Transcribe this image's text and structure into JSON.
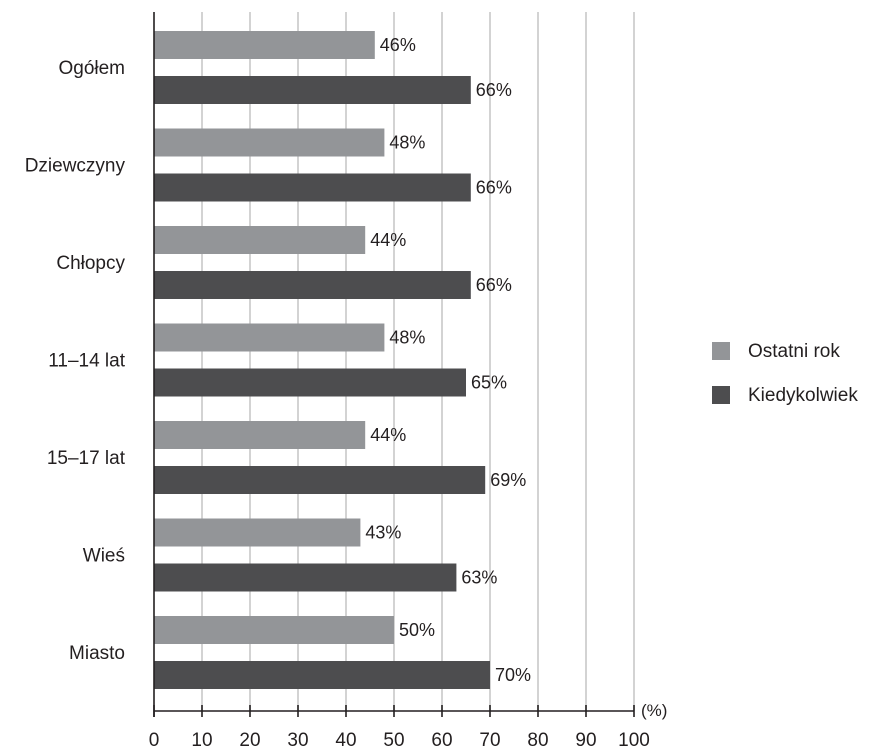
{
  "chart_data": {
    "type": "bar",
    "orientation": "horizontal",
    "categories": [
      "Ogółem",
      "Dziewczyny",
      "Chłopcy",
      "11–14 lat",
      "15–17 lat",
      "Wieś",
      "Miasto"
    ],
    "series": [
      {
        "name": "Ostatni rok",
        "color": "#939598",
        "values": [
          46,
          48,
          44,
          48,
          44,
          43,
          50
        ]
      },
      {
        "name": "Kiedykolwiek",
        "color": "#4d4d4f",
        "values": [
          66,
          66,
          66,
          65,
          69,
          63,
          70
        ]
      }
    ],
    "data_labels": [
      [
        "46%",
        "48%",
        "44%",
        "48%",
        "44%",
        "43%",
        "50%"
      ],
      [
        "66%",
        "66%",
        "66%",
        "65%",
        "69%",
        "63%",
        "70%"
      ]
    ],
    "xlim": [
      0,
      100
    ],
    "xticks": [
      0,
      10,
      20,
      30,
      40,
      50,
      60,
      70,
      80,
      90,
      100
    ],
    "xunit": "(%)",
    "grid": "vertical",
    "legend_position": "right"
  }
}
